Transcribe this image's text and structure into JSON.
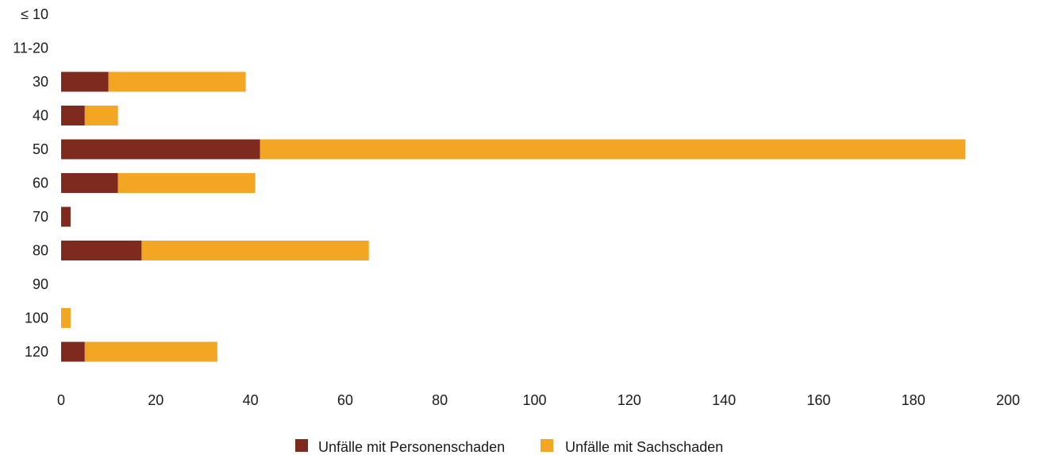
{
  "chart_data": {
    "type": "bar",
    "orientation": "horizontal",
    "stacked": true,
    "title": "",
    "xlabel": "",
    "ylabel": "",
    "categories": [
      "≤ 10",
      "11-20",
      "30",
      "40",
      "50",
      "60",
      "70",
      "80",
      "90",
      "100",
      "120"
    ],
    "series": [
      {
        "name": "Unfälle mit Personenschaden",
        "color": "#7f2a1e",
        "values": [
          0,
          0,
          10,
          5,
          42,
          12,
          2,
          17,
          0,
          0,
          5
        ]
      },
      {
        "name": "Unfälle mit Sachschaden",
        "color": "#f2a623",
        "values": [
          0,
          0,
          29,
          7,
          149,
          29,
          0,
          48,
          0,
          2,
          28
        ]
      }
    ],
    "xlim": [
      0,
      200
    ],
    "xticks": [
      "0",
      "20",
      "40",
      "60",
      "80",
      "100",
      "120",
      "140",
      "160",
      "180",
      "200"
    ],
    "grid": false,
    "legend_position": "bottom-center"
  }
}
